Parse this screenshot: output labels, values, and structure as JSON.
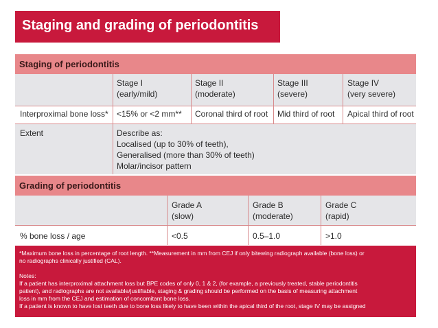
{
  "title": "Staging and grading of periodontitis",
  "staging": {
    "heading": "Staging of periodontitis",
    "stages": [
      {
        "name": "Stage I",
        "desc": "(early/mild)"
      },
      {
        "name": "Stage II",
        "desc": "(moderate)"
      },
      {
        "name": "Stage III",
        "desc": "(severe)"
      },
      {
        "name": "Stage IV",
        "desc": "(very severe)"
      }
    ],
    "bone_loss": {
      "label": "Interproximal bone loss*",
      "values": [
        "<15% or <2 mm**",
        "Coronal third of root",
        "Mid third of root",
        "Apical third of root"
      ]
    },
    "extent": {
      "label": "Extent",
      "lines": [
        "Describe as:",
        "Localised (up to 30% of teeth),",
        "Generalised (more than 30% of teeth)",
        "Molar/incisor pattern"
      ]
    }
  },
  "grading": {
    "heading": "Grading of periodontitis",
    "grades": [
      {
        "name": "Grade A",
        "desc": "(slow)"
      },
      {
        "name": "Grade B",
        "desc": "(moderate)"
      },
      {
        "name": "Grade C",
        "desc": "(rapid)"
      }
    ],
    "row": {
      "label": "% bone loss / age",
      "values": [
        "<0.5",
        "0.5–1.0",
        ">1.0"
      ]
    }
  },
  "notes": {
    "footnote_1": "*Maximum bone loss in percentage of root length. **Measurement in mm from CEJ if only bitewing radiograph available (bone loss) or",
    "footnote_2": "no radiographs clinically justified (CAL).",
    "heading": "Notes:",
    "note_1a": "If a patient has interproximal attachment loss but BPE codes of only 0, 1 & 2, (for example, a previously treated, stable periodontitis",
    "note_1b": "patient), and radiographs are not available/justifiable, staging & grading should be performed on the basis of measuring attachment",
    "note_1c": "loss in mm from the CEJ and estimation of concomitant bone loss.",
    "note_2": "If a patient is known to have lost teeth due to bone loss likely to have been within the apical third of the root, stage IV may be assigned"
  }
}
